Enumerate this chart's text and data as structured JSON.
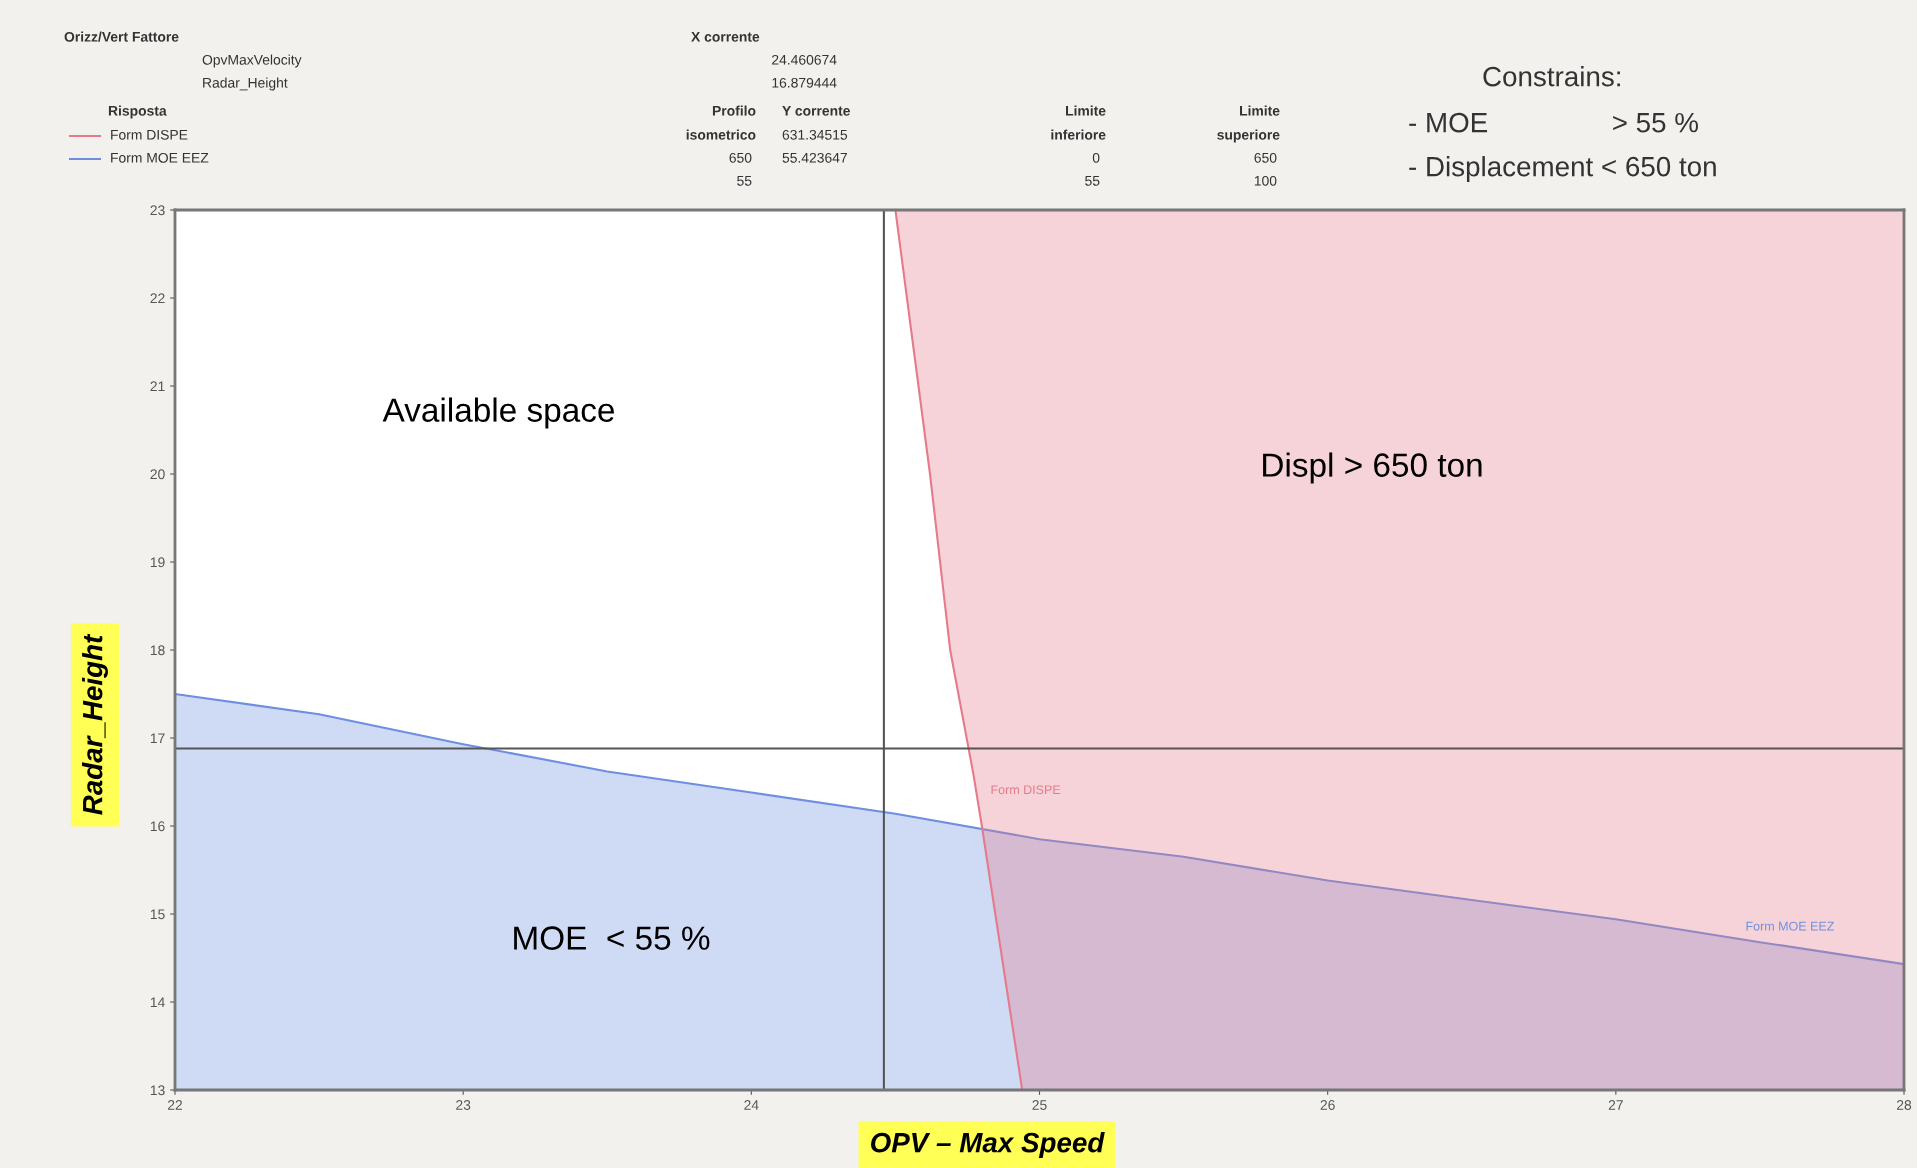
{
  "chart_data": {
    "type": "area",
    "xlabel": "OPV – Max Speed",
    "ylabel": "Radar_Height",
    "xlim": [
      22,
      28
    ],
    "ylim": [
      13,
      23
    ],
    "xticks": [
      22,
      23,
      24,
      25,
      26,
      27,
      28
    ],
    "yticks": [
      13,
      14,
      15,
      16,
      17,
      18,
      19,
      20,
      21,
      22,
      23
    ],
    "grid": false,
    "series": [
      {
        "name": "Form MOE EEZ",
        "color": "#6e8fe0",
        "x": [
          22,
          22.5,
          23,
          23.5,
          24,
          24.5,
          25,
          25.5,
          26,
          26.5,
          27,
          27.5,
          28,
          28,
          22
        ],
        "values": [
          17.5,
          17.27,
          16.93,
          16.62,
          16.38,
          16.14,
          15.85,
          15.65,
          15.38,
          15.16,
          14.94,
          14.68,
          14.43,
          13,
          13
        ]
      },
      {
        "name": "Form DISPE",
        "color": "#e57a8a",
        "x": [
          24.5,
          24.62,
          24.69,
          24.77,
          24.8,
          24.94,
          28,
          28
        ],
        "values": [
          23,
          20,
          18,
          16.6,
          16,
          13,
          13,
          23
        ]
      }
    ],
    "ref_lines": [
      {
        "axis": "x",
        "value": 24.46,
        "color": "#555555"
      },
      {
        "axis": "y",
        "value": 16.88,
        "color": "#555555"
      }
    ],
    "annotations": [
      "Orizz/Vert Fattore",
      "OpvMaxVelocity",
      "Radar_Height",
      "X corrente",
      "24.460674",
      "16.879444",
      "Risposta",
      "Form DISPE",
      "Form MOE EEZ",
      "Profilo",
      "isometrico",
      "650",
      "55",
      "Y corrente",
      "631.34515",
      "55.423647",
      "Limite",
      "inferiore",
      "0",
      "55",
      "Limite",
      "superiore",
      "650",
      "100",
      "Constrains:",
      "- MOE                > 55 %",
      "- Displacement < 650 ton",
      "Available space",
      "Displ > 650 ton",
      "MOE  < 55 %"
    ]
  }
}
